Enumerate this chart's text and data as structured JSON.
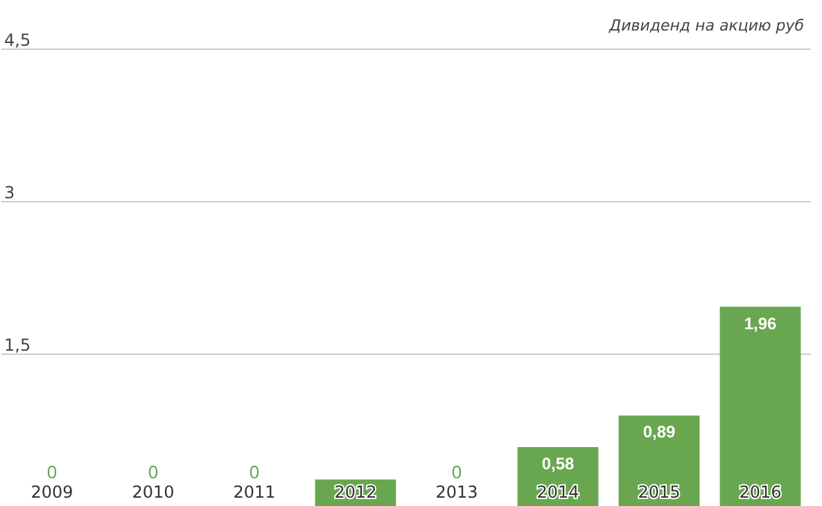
{
  "chart_data": {
    "type": "bar",
    "title": "Дивиденд на акцию руб",
    "categories": [
      "2009",
      "2010",
      "2011",
      "2012",
      "2013",
      "2014",
      "2015",
      "2016"
    ],
    "values": [
      0,
      0,
      0,
      0.26,
      0,
      0.58,
      0.89,
      1.96
    ],
    "value_labels": [
      "0",
      "0",
      "0",
      null,
      "0",
      "0,58",
      "0,89",
      "1,96"
    ],
    "color": "#68a74f",
    "ylim": [
      0,
      4.5
    ],
    "yticks": [
      {
        "value": 1.5,
        "label": "1,5"
      },
      3,
      {
        "value": 4.5,
        "label": "4,5"
      }
    ],
    "grid": "y"
  }
}
